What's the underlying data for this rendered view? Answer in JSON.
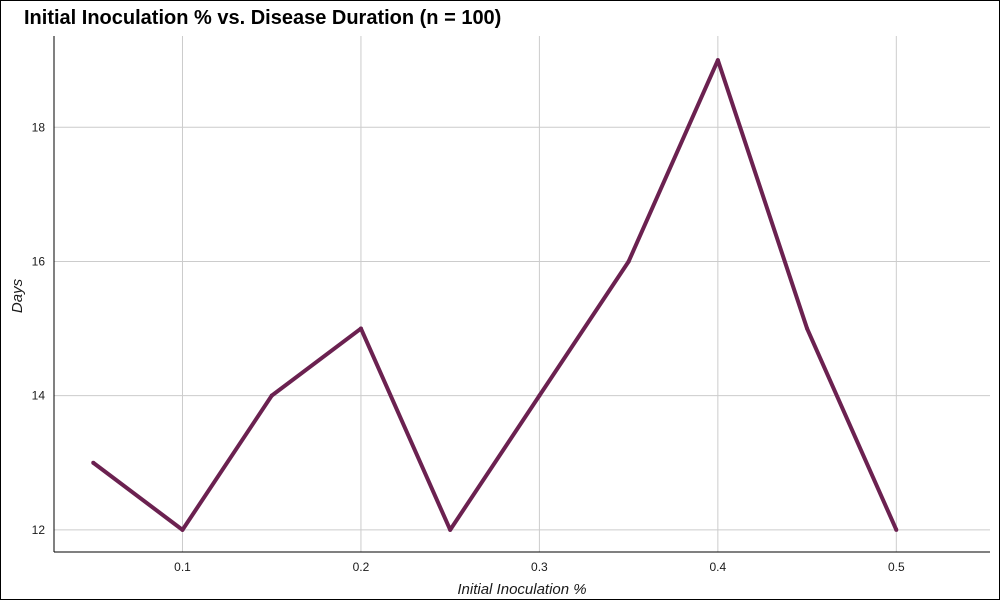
{
  "chart_data": {
    "type": "line",
    "title": "Initial Inoculation % vs. Disease Duration (n = 100)",
    "xlabel": "Initial Inoculation %",
    "ylabel": "Days",
    "x": [
      0.05,
      0.1,
      0.15,
      0.2,
      0.25,
      0.3,
      0.35,
      0.4,
      0.45,
      0.5
    ],
    "series": [
      {
        "values": [
          13,
          12,
          14,
          15,
          12,
          14,
          16,
          19,
          15,
          12
        ]
      }
    ],
    "xlim": [
      0.028,
      0.5525
    ],
    "ylim": [
      11.67,
      19.36
    ],
    "xticks": [
      0.1,
      0.2,
      0.3,
      0.4,
      0.5
    ],
    "xtick_labels": [
      "0.1",
      "0.2",
      "0.3",
      "0.4",
      "0.5"
    ],
    "yticks": [
      12,
      14,
      16,
      18
    ],
    "ytick_labels": [
      "12",
      "14",
      "16",
      "18"
    ],
    "grid": true,
    "line_color": "#6b2150",
    "grid_color": "#cccccc"
  }
}
